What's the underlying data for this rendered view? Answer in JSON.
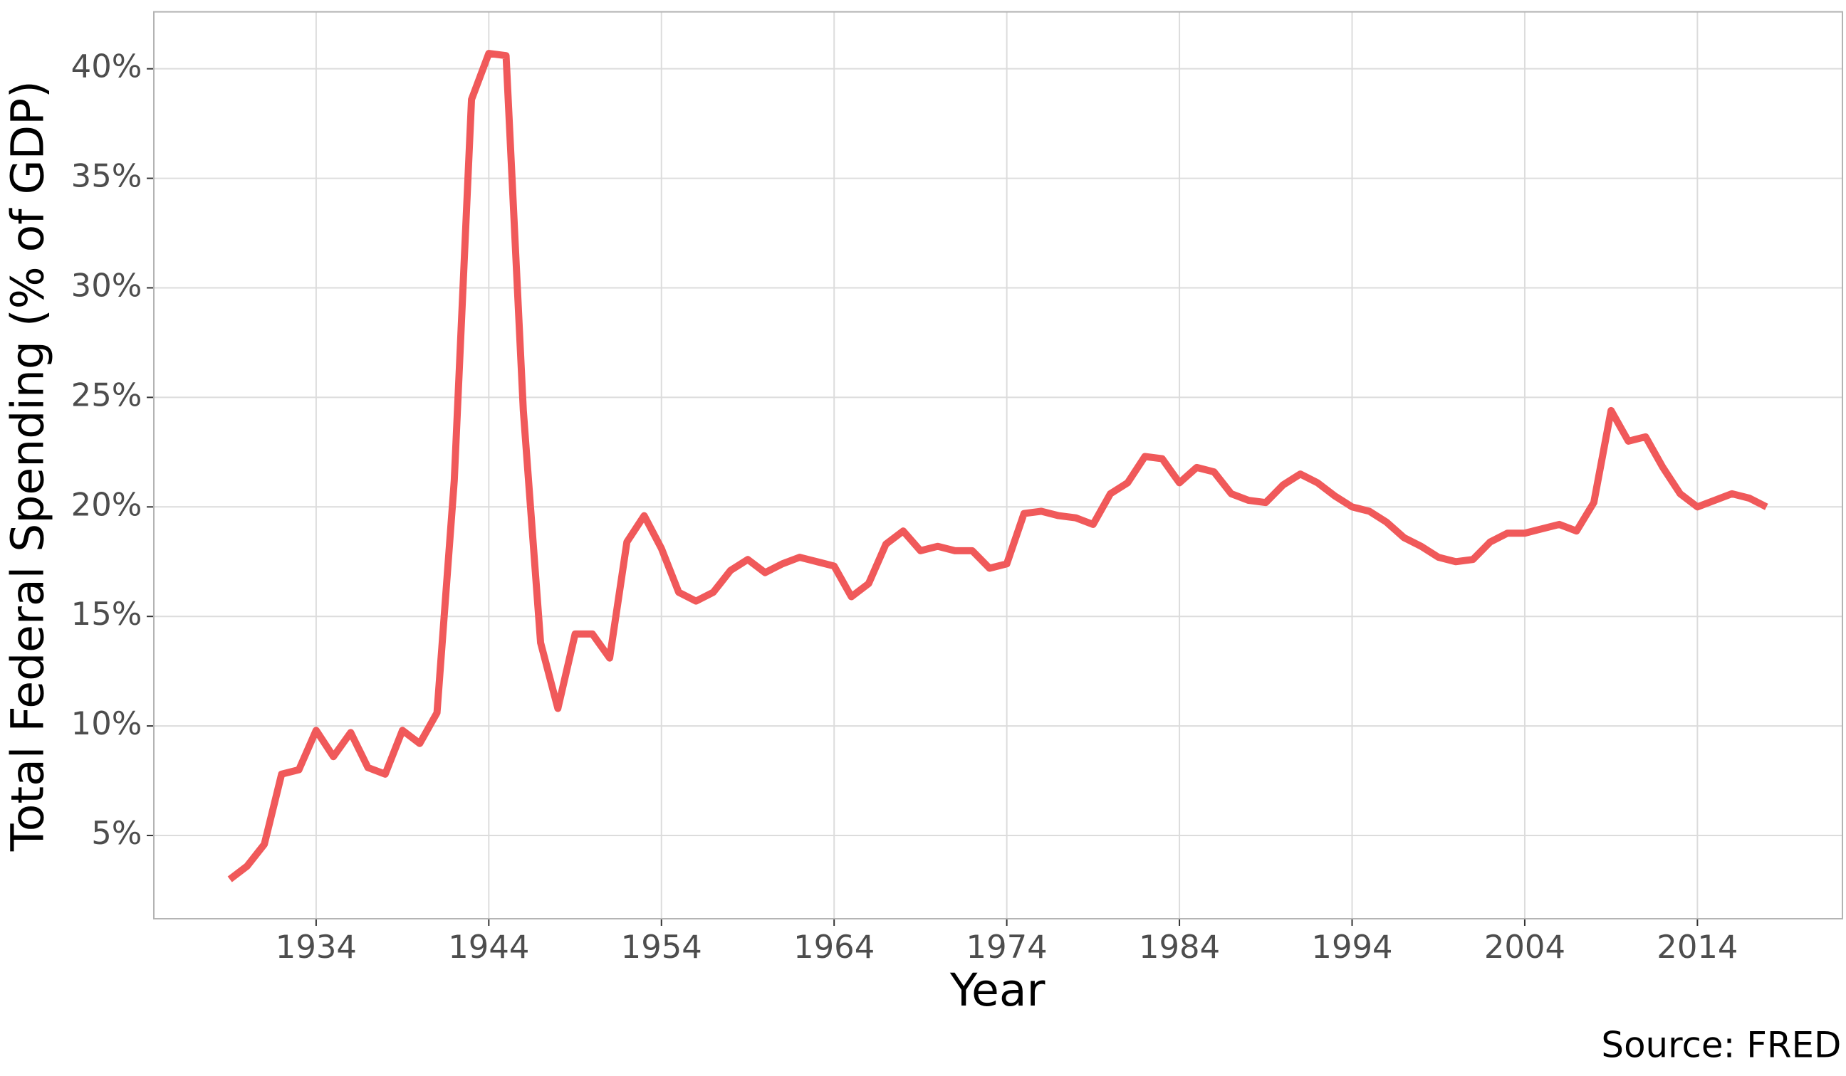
{
  "chart_data": {
    "type": "line",
    "x_label": "Year",
    "y_label": "Total Federal Spending (% of GDP)",
    "caption": "Source: FRED",
    "color": "#F0595A",
    "grid": true,
    "x": [
      1929,
      1930,
      1931,
      1932,
      1933,
      1934,
      1935,
      1936,
      1937,
      1938,
      1939,
      1940,
      1941,
      1942,
      1943,
      1944,
      1945,
      1946,
      1947,
      1948,
      1949,
      1950,
      1951,
      1952,
      1953,
      1954,
      1955,
      1956,
      1957,
      1958,
      1959,
      1960,
      1961,
      1962,
      1963,
      1964,
      1965,
      1966,
      1967,
      1968,
      1969,
      1970,
      1971,
      1972,
      1973,
      1974,
      1975,
      1976,
      1977,
      1978,
      1979,
      1980,
      1981,
      1982,
      1983,
      1984,
      1985,
      1986,
      1987,
      1988,
      1989,
      1990,
      1991,
      1992,
      1993,
      1994,
      1995,
      1996,
      1997,
      1998,
      1999,
      2000,
      2001,
      2002,
      2003,
      2004,
      2005,
      2006,
      2007,
      2008,
      2009,
      2010,
      2011,
      2012,
      2013,
      2014,
      2015,
      2016,
      2017,
      2018
    ],
    "values": [
      3.0,
      3.6,
      4.6,
      7.8,
      8.0,
      9.8,
      8.6,
      9.7,
      8.1,
      7.8,
      9.8,
      9.2,
      10.6,
      21.2,
      38.6,
      40.7,
      40.6,
      24.4,
      13.8,
      10.8,
      14.2,
      14.2,
      13.1,
      18.4,
      19.6,
      18.1,
      16.1,
      15.7,
      16.1,
      17.1,
      17.6,
      17.0,
      17.4,
      17.7,
      17.5,
      17.3,
      15.9,
      16.5,
      18.3,
      18.9,
      18.0,
      18.2,
      18.0,
      18.0,
      17.2,
      17.4,
      19.7,
      19.8,
      19.6,
      19.5,
      19.2,
      20.6,
      21.1,
      22.3,
      22.2,
      21.1,
      21.8,
      21.6,
      20.6,
      20.3,
      20.2,
      21.0,
      21.5,
      21.1,
      20.5,
      20.0,
      19.8,
      19.3,
      18.6,
      18.2,
      17.7,
      17.5,
      17.6,
      18.4,
      18.8,
      18.8,
      19.0,
      19.2,
      18.9,
      20.2,
      24.4,
      23.0,
      23.2,
      21.8,
      20.6,
      20.0,
      20.3,
      20.6,
      20.4,
      20.0
    ],
    "xlim": [
      1924.6,
      2022.4
    ],
    "xticks": [
      1934,
      1944,
      1954,
      1964,
      1974,
      1984,
      1994,
      2004,
      2014
    ],
    "ylim": [
      1.2,
      42.6
    ],
    "yticks": [
      {
        "value": 5,
        "label": "5%"
      },
      {
        "value": 10,
        "label": "10%"
      },
      {
        "value": 15,
        "label": "15%"
      },
      {
        "value": 20,
        "label": "20%"
      },
      {
        "value": 25,
        "label": "25%"
      },
      {
        "value": 30,
        "label": "30%"
      },
      {
        "value": 35,
        "label": "35%"
      },
      {
        "value": 40,
        "label": "40%"
      }
    ]
  }
}
